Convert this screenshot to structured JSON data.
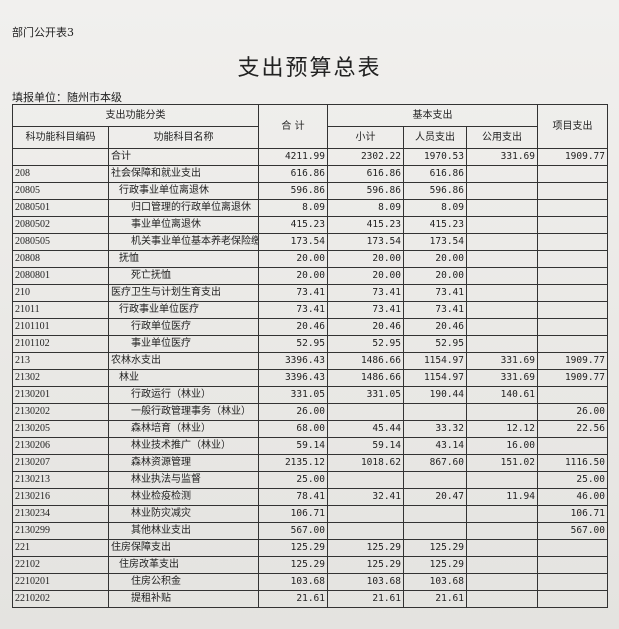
{
  "doc_label": "部门公开表3",
  "title": "支出预算总表",
  "unit": "填报单位：随州市本级",
  "headers": {
    "func_class": "支出功能分类",
    "total": "合 计",
    "basic": "基本支出",
    "project": "项目支出",
    "code": "科功能科目编码",
    "name": "功能科目名称",
    "subtotal": "小计",
    "personnel": "人员支出",
    "public": "公用支出"
  },
  "rows": [
    {
      "code": "",
      "name": "合计",
      "level": 0,
      "total": "4211.99",
      "subtotal": "2302.22",
      "personnel": "1970.53",
      "public": "331.69",
      "project": "1909.77"
    },
    {
      "code": "208",
      "name": "社会保障和就业支出",
      "level": 0,
      "total": "616.86",
      "subtotal": "616.86",
      "personnel": "616.86",
      "public": "",
      "project": ""
    },
    {
      "code": "20805",
      "name": "行政事业单位离退休",
      "level": 1,
      "total": "596.86",
      "subtotal": "596.86",
      "personnel": "596.86",
      "public": "",
      "project": ""
    },
    {
      "code": "2080501",
      "name": "归口管理的行政单位离退休",
      "level": 2,
      "total": "8.09",
      "subtotal": "8.09",
      "personnel": "8.09",
      "public": "",
      "project": ""
    },
    {
      "code": "2080502",
      "name": "事业单位离退休",
      "level": 2,
      "total": "415.23",
      "subtotal": "415.23",
      "personnel": "415.23",
      "public": "",
      "project": ""
    },
    {
      "code": "2080505",
      "name": "机关事业单位基本养老保险缴",
      "level": 2,
      "total": "173.54",
      "subtotal": "173.54",
      "personnel": "173.54",
      "public": "",
      "project": ""
    },
    {
      "code": "20808",
      "name": "抚恤",
      "level": 1,
      "total": "20.00",
      "subtotal": "20.00",
      "personnel": "20.00",
      "public": "",
      "project": ""
    },
    {
      "code": "2080801",
      "name": "死亡抚恤",
      "level": 2,
      "total": "20.00",
      "subtotal": "20.00",
      "personnel": "20.00",
      "public": "",
      "project": ""
    },
    {
      "code": "210",
      "name": "医疗卫生与计划生育支出",
      "level": 0,
      "total": "73.41",
      "subtotal": "73.41",
      "personnel": "73.41",
      "public": "",
      "project": ""
    },
    {
      "code": "21011",
      "name": "行政事业单位医疗",
      "level": 1,
      "total": "73.41",
      "subtotal": "73.41",
      "personnel": "73.41",
      "public": "",
      "project": ""
    },
    {
      "code": "2101101",
      "name": "行政单位医疗",
      "level": 2,
      "total": "20.46",
      "subtotal": "20.46",
      "personnel": "20.46",
      "public": "",
      "project": ""
    },
    {
      "code": "2101102",
      "name": "事业单位医疗",
      "level": 2,
      "total": "52.95",
      "subtotal": "52.95",
      "personnel": "52.95",
      "public": "",
      "project": ""
    },
    {
      "code": "213",
      "name": "农林水支出",
      "level": 0,
      "total": "3396.43",
      "subtotal": "1486.66",
      "personnel": "1154.97",
      "public": "331.69",
      "project": "1909.77"
    },
    {
      "code": "21302",
      "name": "林业",
      "level": 1,
      "total": "3396.43",
      "subtotal": "1486.66",
      "personnel": "1154.97",
      "public": "331.69",
      "project": "1909.77"
    },
    {
      "code": "2130201",
      "name": "行政运行（林业）",
      "level": 2,
      "total": "331.05",
      "subtotal": "331.05",
      "personnel": "190.44",
      "public": "140.61",
      "project": ""
    },
    {
      "code": "2130202",
      "name": "一般行政管理事务（林业）",
      "level": 2,
      "total": "26.00",
      "subtotal": "",
      "personnel": "",
      "public": "",
      "project": "26.00"
    },
    {
      "code": "2130205",
      "name": "森林培育（林业）",
      "level": 2,
      "total": "68.00",
      "subtotal": "45.44",
      "personnel": "33.32",
      "public": "12.12",
      "project": "22.56"
    },
    {
      "code": "2130206",
      "name": "林业技术推广（林业）",
      "level": 2,
      "total": "59.14",
      "subtotal": "59.14",
      "personnel": "43.14",
      "public": "16.00",
      "project": ""
    },
    {
      "code": "2130207",
      "name": "森林资源管理",
      "level": 2,
      "total": "2135.12",
      "subtotal": "1018.62",
      "personnel": "867.60",
      "public": "151.02",
      "project": "1116.50"
    },
    {
      "code": "2130213",
      "name": "林业执法与监督",
      "level": 2,
      "total": "25.00",
      "subtotal": "",
      "personnel": "",
      "public": "",
      "project": "25.00"
    },
    {
      "code": "2130216",
      "name": "林业检疫检测",
      "level": 2,
      "total": "78.41",
      "subtotal": "32.41",
      "personnel": "20.47",
      "public": "11.94",
      "project": "46.00"
    },
    {
      "code": "2130234",
      "name": "林业防灾减灾",
      "level": 2,
      "total": "106.71",
      "subtotal": "",
      "personnel": "",
      "public": "",
      "project": "106.71"
    },
    {
      "code": "2130299",
      "name": "其他林业支出",
      "level": 2,
      "total": "567.00",
      "subtotal": "",
      "personnel": "",
      "public": "",
      "project": "567.00"
    },
    {
      "code": "221",
      "name": "住房保障支出",
      "level": 0,
      "total": "125.29",
      "subtotal": "125.29",
      "personnel": "125.29",
      "public": "",
      "project": ""
    },
    {
      "code": "22102",
      "name": "住房改革支出",
      "level": 1,
      "total": "125.29",
      "subtotal": "125.29",
      "personnel": "125.29",
      "public": "",
      "project": ""
    },
    {
      "code": "2210201",
      "name": "住房公积金",
      "level": 2,
      "total": "103.68",
      "subtotal": "103.68",
      "personnel": "103.68",
      "public": "",
      "project": ""
    },
    {
      "code": "2210202",
      "name": "提租补贴",
      "level": 2,
      "total": "21.61",
      "subtotal": "21.61",
      "personnel": "21.61",
      "public": "",
      "project": ""
    }
  ]
}
